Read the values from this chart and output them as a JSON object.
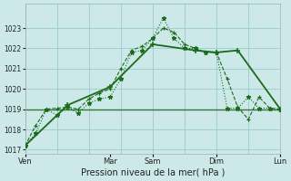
{
  "xlabel": "Pression niveau de la mer( hPa )",
  "bg_color": "#cce8e8",
  "grid_color_major": "#99cccc",
  "grid_color_minor": "#bbdddd",
  "line_color": "#1a6b1a",
  "ylim": [
    1016.8,
    1024.2
  ],
  "yticks": [
    1017,
    1018,
    1019,
    1020,
    1021,
    1022,
    1023
  ],
  "day_labels": [
    "Ven",
    "",
    "Mar",
    "Sam",
    "",
    "Dim",
    "",
    "Lun"
  ],
  "vline_positions": [
    0,
    3,
    6,
    9,
    12,
    15,
    18,
    21,
    24
  ],
  "tick_label_positions": [
    0,
    8,
    12,
    18,
    24
  ],
  "tick_label_names": [
    "Ven",
    "Mar",
    "Sam",
    "Dim",
    "Lun"
  ],
  "hline_y": 1019.0,
  "line1_x": [
    0,
    1,
    2,
    3,
    4,
    5,
    6,
    7,
    8,
    9,
    10,
    11,
    12,
    13,
    14,
    15,
    16,
    17,
    18,
    19,
    20,
    21,
    22,
    23,
    24
  ],
  "line1_y": [
    1017.2,
    1018.2,
    1019.0,
    1019.05,
    1019.1,
    1019.0,
    1019.5,
    1019.8,
    1020.0,
    1021.0,
    1021.9,
    1022.1,
    1022.5,
    1023.0,
    1022.8,
    1022.2,
    1022.0,
    1021.8,
    1021.8,
    1020.5,
    1019.1,
    1018.5,
    1019.6,
    1019.05,
    1019.0
  ],
  "line2_x": [
    0,
    1,
    2,
    3,
    4,
    5,
    6,
    7,
    8,
    9,
    10,
    11,
    12,
    13,
    14,
    15,
    16,
    17,
    18,
    19,
    20,
    21,
    22,
    23,
    24
  ],
  "line2_y": [
    1017.2,
    1017.8,
    1019.0,
    1018.7,
    1019.1,
    1018.8,
    1019.3,
    1019.5,
    1019.6,
    1020.5,
    1021.8,
    1021.9,
    1022.5,
    1023.5,
    1022.5,
    1022.0,
    1022.0,
    1021.8,
    1021.8,
    1019.05,
    1019.05,
    1019.6,
    1019.05,
    1019.05,
    1019.0
  ],
  "line3_x": [
    0,
    4,
    8,
    12,
    16,
    18,
    20,
    24
  ],
  "line3_y": [
    1017.2,
    1019.2,
    1020.1,
    1022.2,
    1021.9,
    1021.8,
    1021.9,
    1019.0
  ]
}
